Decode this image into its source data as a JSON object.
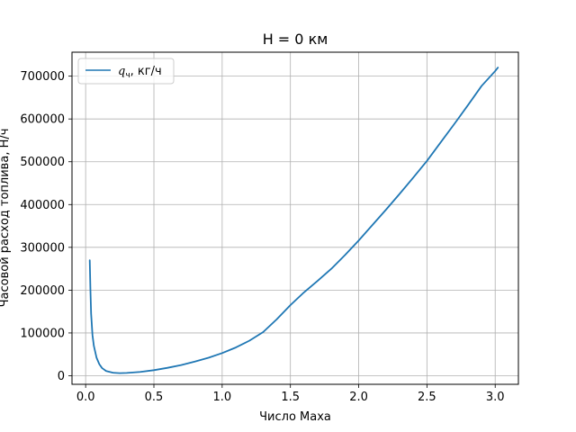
{
  "chart_data": {
    "type": "line",
    "title": "H = 0 км",
    "xlabel": "Число Маха",
    "ylabel": "Часовой расход топлива, Н/ч",
    "xlim": [
      -0.1,
      3.17
    ],
    "ylim": [
      -20000,
      756000
    ],
    "xticks": [
      0.0,
      0.5,
      1.0,
      1.5,
      2.0,
      2.5,
      3.0
    ],
    "xtick_labels": [
      "0.0",
      "0.5",
      "1.0",
      "1.5",
      "2.0",
      "2.5",
      "3.0"
    ],
    "yticks": [
      0,
      100000,
      200000,
      300000,
      400000,
      500000,
      600000,
      700000
    ],
    "ytick_labels": [
      "0",
      "100000",
      "200000",
      "300000",
      "400000",
      "500000",
      "600000",
      "700000"
    ],
    "grid": true,
    "legend_position": "top-left",
    "colors": {
      "series": "#1f77b4",
      "grid": "#b0b0b0",
      "axis": "#000000"
    },
    "series": [
      {
        "name_symbol": "q",
        "name_subscript": "ч",
        "name_unit": ",  кг/ч",
        "x": [
          0.03,
          0.035,
          0.04,
          0.05,
          0.06,
          0.08,
          0.1,
          0.12,
          0.15,
          0.2,
          0.25,
          0.3,
          0.4,
          0.5,
          0.6,
          0.7,
          0.8,
          0.9,
          1.0,
          1.1,
          1.2,
          1.3,
          1.4,
          1.5,
          1.6,
          1.7,
          1.8,
          1.9,
          2.0,
          2.1,
          2.2,
          2.3,
          2.4,
          2.5,
          2.6,
          2.7,
          2.8,
          2.9,
          3.0,
          3.02
        ],
        "y": [
          270000,
          200000,
          145000,
          95000,
          70000,
          42000,
          27000,
          18000,
          11000,
          7000,
          6000,
          6500,
          9000,
          13000,
          18500,
          25000,
          33000,
          42000,
          53000,
          66000,
          82000,
          102000,
          132000,
          165000,
          195000,
          222000,
          250000,
          282000,
          316000,
          352000,
          388000,
          425000,
          463000,
          502000,
          545000,
          588000,
          632000,
          677000,
          712000,
          720000
        ]
      }
    ]
  }
}
